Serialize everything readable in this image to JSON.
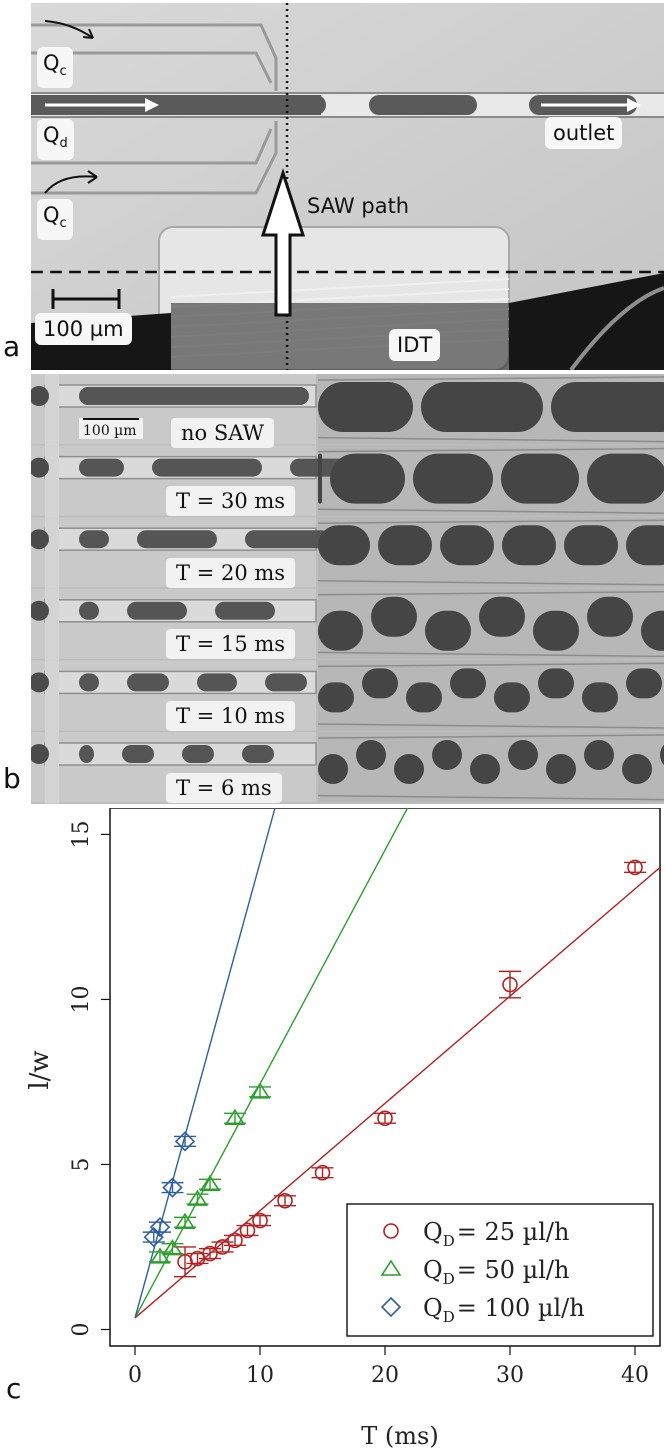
{
  "panel_letters": {
    "a": "a",
    "b": "b",
    "c": "c"
  },
  "panel_a": {
    "labels": {
      "qc_top_main": "Q",
      "qc_top_sub": "c",
      "qd_main": "Q",
      "qd_sub": "d",
      "qc_bottom_main": "Q",
      "qc_bottom_sub": "c",
      "outlet": "outlet",
      "saw_path": "SAW path",
      "scale_bar": "100 µm",
      "idt": "IDT"
    }
  },
  "panel_b": {
    "scale_bar": "100 µm",
    "rows": [
      {
        "label": "no SAW"
      },
      {
        "label": "T = 30 ms"
      },
      {
        "label": "T = 20 ms"
      },
      {
        "label": "T = 15 ms"
      },
      {
        "label": "T = 10 ms"
      },
      {
        "label": "T = 6 ms"
      }
    ]
  },
  "chart_data": {
    "type": "scatter",
    "title": "",
    "xlabel": "T (ms)",
    "ylabel": "l/w",
    "xlim": [
      -2,
      42
    ],
    "ylim": [
      -0.5,
      15.8
    ],
    "xticks": [
      0,
      10,
      20,
      30,
      40
    ],
    "yticks": [
      0,
      5,
      10,
      15
    ],
    "grid": false,
    "legend_placement": "bottom-right",
    "series": [
      {
        "name": "Q_D =   25 µl/h",
        "legend_main": "Q",
        "legend_sub": "D",
        "legend_rest": "=   25 µl/h",
        "color": "#b22222",
        "marker": "circle",
        "points": [
          {
            "x": 4,
            "y": 2.05,
            "err": 0.45
          },
          {
            "x": 5,
            "y": 2.15,
            "err": 0.15
          },
          {
            "x": 6,
            "y": 2.3,
            "err": 0.15
          },
          {
            "x": 7,
            "y": 2.5,
            "err": 0.15
          },
          {
            "x": 8,
            "y": 2.7,
            "err": 0.15
          },
          {
            "x": 9,
            "y": 3.0,
            "err": 0.15
          },
          {
            "x": 10,
            "y": 3.3,
            "err": 0.15
          },
          {
            "x": 12,
            "y": 3.9,
            "err": 0.15
          },
          {
            "x": 15,
            "y": 4.75,
            "err": 0.15
          },
          {
            "x": 20,
            "y": 6.4,
            "err": 0.15
          },
          {
            "x": 30,
            "y": 10.45,
            "err": 0.4
          },
          {
            "x": 40,
            "y": 14.0,
            "err": 0.15
          }
        ],
        "fit": {
          "x": [
            0,
            42
          ],
          "y": [
            0.35,
            14.0
          ]
        }
      },
      {
        "name": "Q_D =   50 µl/h",
        "legend_main": "Q",
        "legend_sub": "D",
        "legend_rest": "=   50 µl/h",
        "color": "#2e9e2e",
        "marker": "triangle",
        "points": [
          {
            "x": 2,
            "y": 2.2,
            "err": 0.15
          },
          {
            "x": 3,
            "y": 2.45,
            "err": 0.15
          },
          {
            "x": 4,
            "y": 3.25,
            "err": 0.15
          },
          {
            "x": 5,
            "y": 3.95,
            "err": 0.15
          },
          {
            "x": 6,
            "y": 4.4,
            "err": 0.15
          },
          {
            "x": 8,
            "y": 6.4,
            "err": 0.15
          },
          {
            "x": 10,
            "y": 7.2,
            "err": 0.15
          }
        ],
        "fit": {
          "x": [
            0,
            21.8
          ],
          "y": [
            0.35,
            15.8
          ]
        }
      },
      {
        "name": "Q_D = 100 µl/h",
        "legend_main": "Q",
        "legend_sub": "D",
        "legend_rest": "= 100 µl/h",
        "color": "#2f5f9e",
        "marker": "diamond",
        "points": [
          {
            "x": 1.5,
            "y": 2.8,
            "err": 0.15
          },
          {
            "x": 2,
            "y": 3.1,
            "err": 0.15
          },
          {
            "x": 3,
            "y": 4.3,
            "err": 0.15
          },
          {
            "x": 4,
            "y": 5.7,
            "err": 0.15
          }
        ],
        "fit": {
          "x": [
            0,
            11.2
          ],
          "y": [
            0.35,
            15.8
          ]
        }
      }
    ]
  }
}
